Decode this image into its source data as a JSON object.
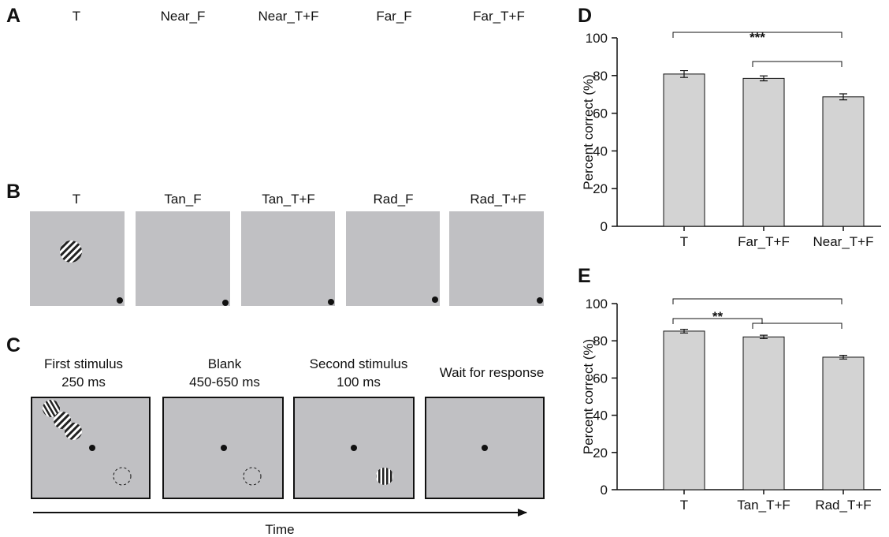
{
  "panel_a": {
    "letter": "A",
    "labels": [
      "T",
      "Near_F",
      "Near_T+F",
      "Far_F",
      "Far_T+F"
    ]
  },
  "panel_b": {
    "letter": "B",
    "labels": [
      "T",
      "Tan_F",
      "Tan_T+F",
      "Rad_F",
      "Rad_T+F"
    ]
  },
  "panel_c": {
    "letter": "C",
    "steps": [
      [
        "First stimulus",
        "250 ms"
      ],
      [
        "Blank",
        "450-650 ms"
      ],
      [
        "Second stimulus",
        "100 ms"
      ],
      [
        "Wait for response"
      ]
    ],
    "axis_label": "Time"
  },
  "chart_data": [
    {
      "type": "bar",
      "label": "D",
      "ylabel": "Percent correct (%)",
      "categories": [
        "T",
        "Far_T+F",
        "Near_T+F"
      ],
      "values": [
        80.8,
        78.5,
        68.7
      ],
      "errors": [
        1.8,
        1.3,
        1.6
      ],
      "color": "#d3d3d3",
      "ylim": [
        0,
        100
      ],
      "yticks": [
        0,
        20,
        40,
        60,
        80,
        100
      ],
      "annotations": [
        {
          "pair": [
            "T",
            "Near_T+F"
          ],
          "label": "***"
        },
        {
          "pair": [
            "Far_T+F",
            "Near_T+F"
          ]
        }
      ]
    },
    {
      "type": "bar",
      "label": "E",
      "ylabel": "Percent correct (%)",
      "categories": [
        "T",
        "Tan_T+F",
        "Rad_T+F"
      ],
      "values": [
        85.2,
        82.1,
        71.2
      ],
      "errors": [
        1.0,
        0.9,
        1.0
      ],
      "color": "#d3d3d3",
      "ylim": [
        0,
        100
      ],
      "yticks": [
        0,
        20,
        40,
        60,
        80,
        100
      ],
      "annotations": [
        {
          "pair": [
            "T",
            "Rad_T+F"
          ]
        },
        {
          "pair": [
            "T",
            "Tan_T+F"
          ],
          "label": "**"
        },
        {
          "pair": [
            "Tan_T+F",
            "Rad_T+F"
          ]
        }
      ]
    }
  ]
}
